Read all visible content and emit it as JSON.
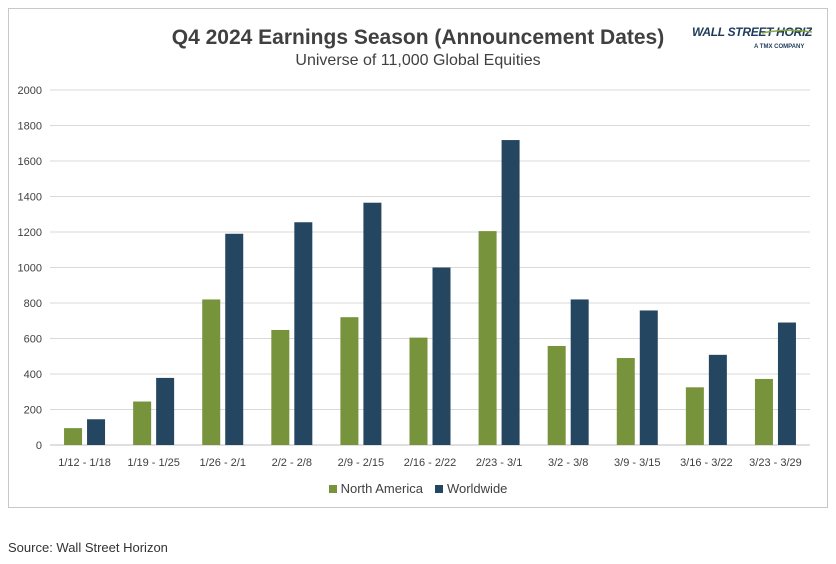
{
  "chart_data": {
    "type": "bar",
    "title": "Q4 2024 Earnings Season (Announcement Dates)",
    "subtitle": "Universe of 11,000 Global Equities",
    "categories": [
      "1/12 - 1/18",
      "1/19 - 1/25",
      "1/26 - 2/1",
      "2/2 - 2/8",
      "2/9 - 2/15",
      "2/16 - 2/22",
      "2/23 - 3/1",
      "3/2 - 3/8",
      "3/9 - 3/15",
      "3/16 - 3/22",
      "3/23 - 3/29"
    ],
    "series": [
      {
        "name": "North America",
        "color": "#77933c",
        "values": [
          95,
          245,
          820,
          648,
          720,
          605,
          1205,
          558,
          490,
          325,
          372
        ]
      },
      {
        "name": "Worldwide",
        "color": "#254661",
        "values": [
          145,
          378,
          1190,
          1255,
          1365,
          1000,
          1718,
          820,
          758,
          508,
          690
        ]
      }
    ],
    "ylim": [
      0,
      2000
    ],
    "yticks": [
      0,
      200,
      400,
      600,
      800,
      1000,
      1200,
      1400,
      1600,
      1800,
      2000
    ],
    "ytick_labels": [
      "0",
      "200",
      "400",
      "600",
      "800",
      "1000",
      "1200",
      "1400",
      "1600",
      "1800",
      "2000"
    ],
    "xlabel": "",
    "ylabel": "",
    "grid": true,
    "legend_position": "bottom"
  },
  "logo": {
    "main": "WALL STREET HORIZON",
    "sub": "A TMX COMPANY"
  },
  "source": "Source: Wall Street Horizon"
}
